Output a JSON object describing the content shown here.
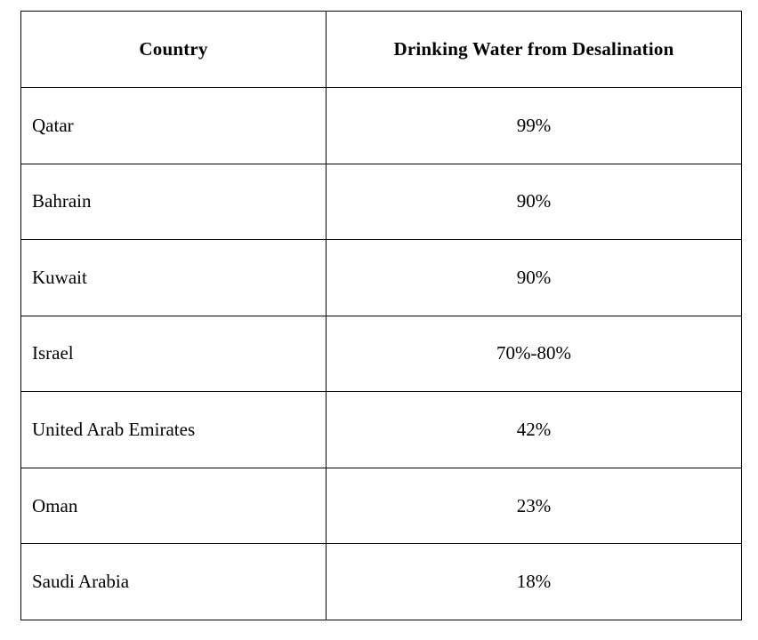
{
  "table": {
    "headers": {
      "country": "Country",
      "value": "Drinking Water from Desalination"
    },
    "rows": [
      {
        "country": "Qatar",
        "value": "99%"
      },
      {
        "country": "Bahrain",
        "value": "90%"
      },
      {
        "country": "Kuwait",
        "value": "90%"
      },
      {
        "country": "Israel",
        "value": "70%-80%"
      },
      {
        "country": "United Arab Emirates",
        "value": "42%"
      },
      {
        "country": "Oman",
        "value": "23%"
      },
      {
        "country": "Saudi Arabia",
        "value": "18%"
      }
    ]
  },
  "chart_data": {
    "type": "table",
    "columns": [
      "Country",
      "Drinking Water from Desalination"
    ],
    "categories": [
      "Qatar",
      "Bahrain",
      "Kuwait",
      "Israel",
      "United Arab Emirates",
      "Oman",
      "Saudi Arabia"
    ],
    "values_display": [
      "99%",
      "90%",
      "90%",
      "70%-80%",
      "42%",
      "23%",
      "18%"
    ],
    "values_percent": [
      99,
      90,
      90,
      [
        70,
        80
      ],
      42,
      23,
      18
    ],
    "layout": {
      "grid": "full-borders",
      "header_style": "bold-centered",
      "country_alignment": "left",
      "value_alignment": "center",
      "border_color": "#000000",
      "background": "#ffffff"
    }
  }
}
